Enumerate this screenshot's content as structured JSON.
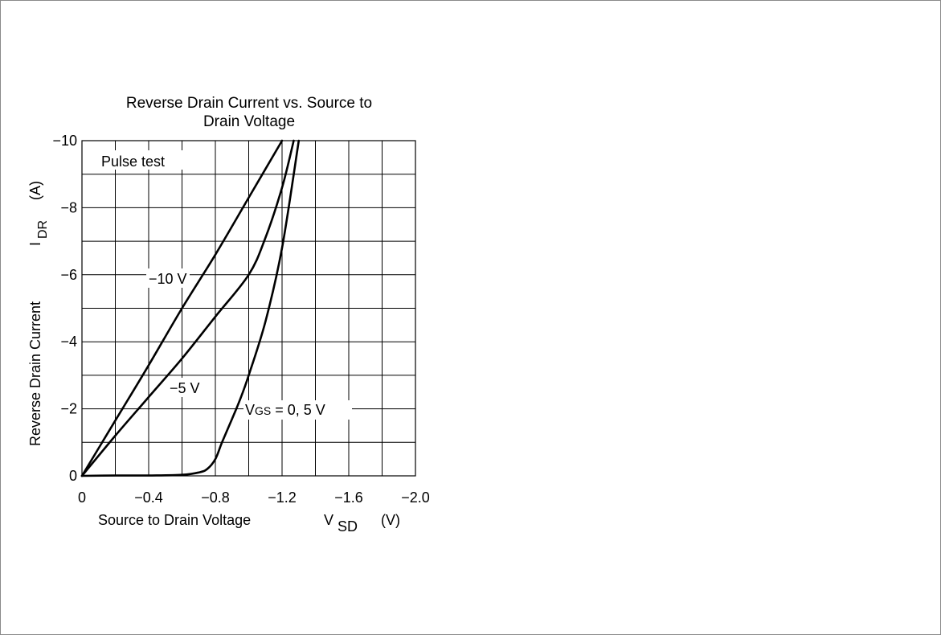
{
  "chart_data": {
    "type": "line",
    "title": "Reverse Drain Current vs. Source to Drain Voltage",
    "title_lines": [
      "Reverse Drain Current vs. Source to",
      "Drain Voltage"
    ],
    "xlabel": "Source to Drain Voltage",
    "xlabel_symbol": "V",
    "xlabel_subscript": "SD",
    "xlabel_unit": "(V)",
    "ylabel": "Reverse Drain Current",
    "ylabel_symbol": "I",
    "ylabel_subscript": "DR",
    "ylabel_unit": "(A)",
    "xlim": [
      0,
      -2.0
    ],
    "ylim": [
      0,
      -10
    ],
    "x_ticks": [
      0,
      -0.4,
      -0.8,
      -1.2,
      -1.6,
      -2.0
    ],
    "x_tick_labels": [
      "0",
      "−0.4",
      "−0.8",
      "−1.2",
      "−1.6",
      "−2.0"
    ],
    "y_ticks": [
      0,
      -2,
      -4,
      -6,
      -8,
      -10
    ],
    "y_tick_labels": [
      "0",
      "−2",
      "−4",
      "−6",
      "−8",
      "−10"
    ],
    "grid": true,
    "annotation": "Pulse test",
    "series": [
      {
        "name": "−10 V",
        "x": [
          0,
          -0.2,
          -0.4,
          -0.6,
          -0.8,
          -1.0,
          -1.2
        ],
        "y": [
          0,
          -1.65,
          -3.3,
          -5.0,
          -6.6,
          -8.3,
          -10.0
        ]
      },
      {
        "name": "−5 V",
        "x": [
          0,
          -0.2,
          -0.4,
          -0.6,
          -0.8,
          -1.0,
          -1.1,
          -1.2,
          -1.27
        ],
        "y": [
          0,
          -1.2,
          -2.35,
          -3.5,
          -4.75,
          -6.0,
          -7.1,
          -8.6,
          -10.0
        ]
      },
      {
        "name": "V",
        "name_subscript": "GS",
        "name_suffix": " = 0, 5 V",
        "x": [
          0,
          -0.2,
          -0.4,
          -0.6,
          -0.7,
          -0.75,
          -0.8,
          -0.84,
          -0.9,
          -0.95,
          -1.0,
          -1.1,
          -1.2,
          -1.3
        ],
        "y": [
          0,
          -0.01,
          -0.01,
          -0.03,
          -0.1,
          -0.2,
          -0.5,
          -1.0,
          -1.7,
          -2.3,
          -3.0,
          -4.6,
          -6.8,
          -10.0
        ]
      }
    ]
  }
}
